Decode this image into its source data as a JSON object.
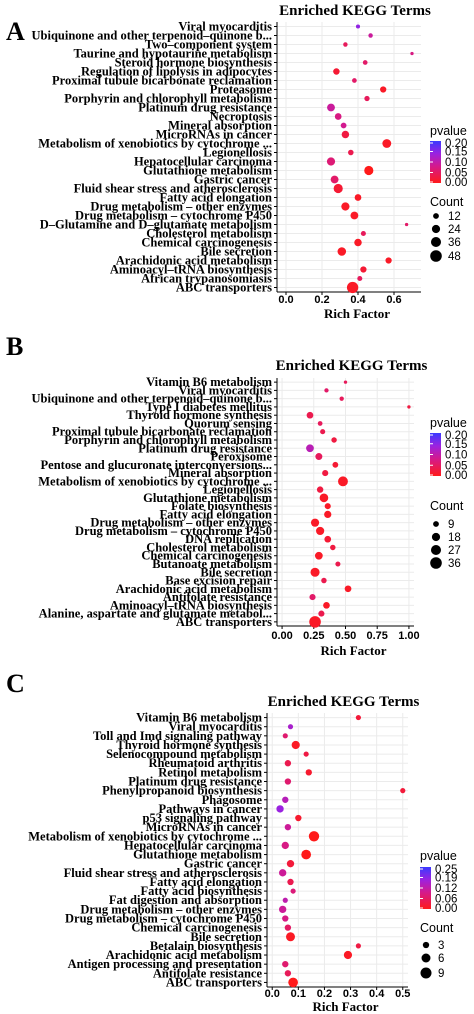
{
  "chart_data": [
    {
      "type": "scatter",
      "panel_label": "A",
      "title": "Enriched KEGG Terms",
      "xlabel": "Rich Factor",
      "xlim": [
        -0.05,
        0.75
      ],
      "xticks": [
        0.0,
        0.2,
        0.4,
        0.6
      ],
      "xtick_labels": [
        "0.0",
        "0.2",
        "0.4",
        "0.6"
      ],
      "grid": true,
      "legend_position": "right",
      "pvalue_legend": {
        "title": "pvalue",
        "ticks": [
          "0.20",
          "0.15",
          "0.10",
          "0.05",
          "0.00"
        ],
        "max": 0.22
      },
      "count_legend": {
        "title": "Count",
        "values": [
          12,
          24,
          36,
          48
        ]
      },
      "terms": [
        {
          "label": "Viral myocarditis",
          "rich_factor": 0.4,
          "count": 6,
          "pvalue": 0.16
        },
        {
          "label": "Ubiquinone and other terpenoid–quinone b...",
          "rich_factor": 0.47,
          "count": 7,
          "pvalue": 0.1
        },
        {
          "label": "Two–component system",
          "rich_factor": 0.33,
          "count": 7,
          "pvalue": 0.05
        },
        {
          "label": "Taurine and hypotaurine metabolism",
          "rich_factor": 0.7,
          "count": 4,
          "pvalue": 0.08
        },
        {
          "label": "Steroid hormone biosynthesis",
          "rich_factor": 0.44,
          "count": 8,
          "pvalue": 0.06
        },
        {
          "label": "Regulation of lipolysis in adipocytes",
          "rich_factor": 0.28,
          "count": 15,
          "pvalue": 0.02
        },
        {
          "label": "Proximal tubule bicarbonate reclamation",
          "rich_factor": 0.38,
          "count": 8,
          "pvalue": 0.06
        },
        {
          "label": "Proteasome",
          "rich_factor": 0.54,
          "count": 14,
          "pvalue": 0.01
        },
        {
          "label": "Porphyrin and chlorophyll metabolism",
          "rich_factor": 0.45,
          "count": 10,
          "pvalue": 0.05
        },
        {
          "label": "Platinum drug resistance",
          "rich_factor": 0.25,
          "count": 22,
          "pvalue": 0.1
        },
        {
          "label": "Necroptosis",
          "rich_factor": 0.29,
          "count": 16,
          "pvalue": 0.08
        },
        {
          "label": "Mineral absorption",
          "rich_factor": 0.32,
          "count": 12,
          "pvalue": 0.09
        },
        {
          "label": "MicroRNAs in cancer",
          "rich_factor": 0.33,
          "count": 20,
          "pvalue": 0.03
        },
        {
          "label": "Metabolism of xenobiotics by cytochrome ...",
          "rich_factor": 0.56,
          "count": 28,
          "pvalue": 0.01
        },
        {
          "label": "Legionellosis",
          "rich_factor": 0.36,
          "count": 11,
          "pvalue": 0.04
        },
        {
          "label": "Hepatocellular carcinoma",
          "rich_factor": 0.25,
          "count": 24,
          "pvalue": 0.07
        },
        {
          "label": "Glutathione metabolism",
          "rich_factor": 0.46,
          "count": 30,
          "pvalue": 0.0
        },
        {
          "label": "Gastric cancer",
          "rich_factor": 0.27,
          "count": 22,
          "pvalue": 0.06
        },
        {
          "label": "Fluid shear stress and atherosclerosis",
          "rich_factor": 0.29,
          "count": 30,
          "pvalue": 0.02
        },
        {
          "label": "Fatty acid elongation",
          "rich_factor": 0.4,
          "count": 16,
          "pvalue": 0.01
        },
        {
          "label": "Drug metabolism – other enzymes",
          "rich_factor": 0.33,
          "count": 24,
          "pvalue": 0.01
        },
        {
          "label": "Drug metabolism – cytochrome P450",
          "rich_factor": 0.38,
          "count": 22,
          "pvalue": 0.01
        },
        {
          "label": "D–Glutamine and D–glutamate metabolism",
          "rich_factor": 0.67,
          "count": 4,
          "pvalue": 0.06
        },
        {
          "label": "Cholesterol metabolism",
          "rich_factor": 0.43,
          "count": 9,
          "pvalue": 0.05
        },
        {
          "label": "Chemical carcinogenesis",
          "rich_factor": 0.4,
          "count": 20,
          "pvalue": 0.01
        },
        {
          "label": "Bile secretion",
          "rich_factor": 0.31,
          "count": 26,
          "pvalue": 0.01
        },
        {
          "label": "Arachidonic acid metabolism",
          "rich_factor": 0.57,
          "count": 14,
          "pvalue": 0.01
        },
        {
          "label": "Aminoacyl–tRNA biosynthesis",
          "rich_factor": 0.43,
          "count": 14,
          "pvalue": 0.02
        },
        {
          "label": "African trypanosomiasis",
          "rich_factor": 0.41,
          "count": 9,
          "pvalue": 0.05
        },
        {
          "label": "ABC transporters",
          "rich_factor": 0.37,
          "count": 46,
          "pvalue": 0.01
        }
      ]
    },
    {
      "type": "scatter",
      "panel_label": "B",
      "title": "Enriched KEGG Terms",
      "xlabel": "Rich Factor",
      "xlim": [
        -0.04,
        1.04
      ],
      "xticks": [
        0.0,
        0.25,
        0.5,
        0.75,
        1.0
      ],
      "xtick_labels": [
        "0.00",
        "0.25",
        "0.50",
        "0.75",
        "1.00"
      ],
      "grid": true,
      "legend_position": "right",
      "pvalue_legend": {
        "title": "pvalue",
        "ticks": [
          "0.20",
          "0.15",
          "0.10",
          "0.05",
          "0.00"
        ],
        "max": 0.22
      },
      "count_legend": {
        "title": "Count",
        "values": [
          9,
          18,
          27,
          36
        ]
      },
      "terms": [
        {
          "label": "Vitamin B6 metabolism",
          "rich_factor": 0.5,
          "count": 3,
          "pvalue": 0.05
        },
        {
          "label": "Viral myocarditis",
          "rich_factor": 0.35,
          "count": 5,
          "pvalue": 0.06
        },
        {
          "label": "Ubiquinone and other terpenoid–quinone b...",
          "rich_factor": 0.47,
          "count": 5,
          "pvalue": 0.05
        },
        {
          "label": "Type I diabetes mellitus",
          "rich_factor": 1.0,
          "count": 3,
          "pvalue": 0.03
        },
        {
          "label": "Thyroid hormone synthesis",
          "rich_factor": 0.22,
          "count": 12,
          "pvalue": 0.04
        },
        {
          "label": "Quorum sensing",
          "rich_factor": 0.3,
          "count": 6,
          "pvalue": 0.05
        },
        {
          "label": "Proximal tubule bicarbonate reclamation",
          "rich_factor": 0.32,
          "count": 7,
          "pvalue": 0.04
        },
        {
          "label": "Porphyrin and chlorophyll metabolism",
          "rich_factor": 0.41,
          "count": 8,
          "pvalue": 0.03
        },
        {
          "label": "Platinum drug resistance",
          "rich_factor": 0.22,
          "count": 16,
          "pvalue": 0.12
        },
        {
          "label": "Peroxisome",
          "rich_factor": 0.29,
          "count": 13,
          "pvalue": 0.05
        },
        {
          "label": "Pentose and glucuronate interconversions...",
          "rich_factor": 0.42,
          "count": 9,
          "pvalue": 0.02
        },
        {
          "label": "Mineral absorption",
          "rich_factor": 0.34,
          "count": 10,
          "pvalue": 0.03
        },
        {
          "label": "Metabolism of xenobiotics by cytochrome ...",
          "rich_factor": 0.48,
          "count": 26,
          "pvalue": 0.01
        },
        {
          "label": "Legionellosis",
          "rich_factor": 0.3,
          "count": 11,
          "pvalue": 0.03
        },
        {
          "label": "Glutathione metabolism",
          "rich_factor": 0.33,
          "count": 20,
          "pvalue": 0.01
        },
        {
          "label": "Folate biosynthesis",
          "rich_factor": 0.36,
          "count": 10,
          "pvalue": 0.01
        },
        {
          "label": "Fatty acid elongation",
          "rich_factor": 0.36,
          "count": 14,
          "pvalue": 0.01
        },
        {
          "label": "Drug metabolism – other enzymes",
          "rich_factor": 0.26,
          "count": 18,
          "pvalue": 0.01
        },
        {
          "label": "Drug metabolism – cytochrome P450",
          "rich_factor": 0.3,
          "count": 18,
          "pvalue": 0.01
        },
        {
          "label": "DNA replication",
          "rich_factor": 0.36,
          "count": 12,
          "pvalue": 0.02
        },
        {
          "label": "Cholesterol metabolism",
          "rich_factor": 0.4,
          "count": 8,
          "pvalue": 0.03
        },
        {
          "label": "Chemical carcinogenesis",
          "rich_factor": 0.29,
          "count": 16,
          "pvalue": 0.01
        },
        {
          "label": "Butanoate metabolism",
          "rich_factor": 0.44,
          "count": 7,
          "pvalue": 0.04
        },
        {
          "label": "Bile secretion",
          "rich_factor": 0.26,
          "count": 22,
          "pvalue": 0.01
        },
        {
          "label": "Base excision repair",
          "rich_factor": 0.33,
          "count": 8,
          "pvalue": 0.04
        },
        {
          "label": "Arachidonic acid metabolism",
          "rich_factor": 0.52,
          "count": 12,
          "pvalue": 0.01
        },
        {
          "label": "Antifolate resistance",
          "rich_factor": 0.24,
          "count": 10,
          "pvalue": 0.06
        },
        {
          "label": "Aminoacyl–tRNA biosynthesis",
          "rich_factor": 0.35,
          "count": 12,
          "pvalue": 0.01
        },
        {
          "label": "Alanine, aspartate and glutamate metabol...",
          "rich_factor": 0.31,
          "count": 10,
          "pvalue": 0.04
        },
        {
          "label": "ABC transporters",
          "rich_factor": 0.26,
          "count": 36,
          "pvalue": 0.01
        }
      ]
    },
    {
      "type": "scatter",
      "panel_label": "C",
      "title": "Enriched KEGG Terms",
      "xlabel": "Rich Factor",
      "xlim": [
        -0.02,
        0.52
      ],
      "xticks": [
        0.0,
        0.1,
        0.2,
        0.3,
        0.4,
        0.5
      ],
      "xtick_labels": [
        "0.0",
        "0.1",
        "0.2",
        "0.3",
        "0.4",
        "0.5"
      ],
      "grid": true,
      "legend_position": "right",
      "pvalue_legend": {
        "title": "pvalue",
        "ticks": [
          "0.25",
          "0.19",
          "0.12",
          "0.06",
          "0.00"
        ],
        "max": 0.27
      },
      "count_legend": {
        "title": "Count",
        "values": [
          3,
          6,
          9
        ]
      },
      "terms": [
        {
          "label": "Vitamin B6 metabolism",
          "rich_factor": 0.33,
          "count": 2,
          "pvalue": 0.03
        },
        {
          "label": "Viral myocarditis",
          "rich_factor": 0.07,
          "count": 2,
          "pvalue": 0.17
        },
        {
          "label": "Toll and Imd signaling pathway",
          "rich_factor": 0.05,
          "count": 2,
          "pvalue": 0.08
        },
        {
          "label": "Thyroid hormone synthesis",
          "rich_factor": 0.09,
          "count": 5,
          "pvalue": 0.01
        },
        {
          "label": "Selenocompound metabolism",
          "rich_factor": 0.13,
          "count": 2,
          "pvalue": 0.04
        },
        {
          "label": "Rheumatoid arthritis",
          "rich_factor": 0.06,
          "count": 3,
          "pvalue": 0.05
        },
        {
          "label": "Retinol metabolism",
          "rich_factor": 0.14,
          "count": 3,
          "pvalue": 0.02
        },
        {
          "label": "Platinum drug resistance",
          "rich_factor": 0.06,
          "count": 3,
          "pvalue": 0.08
        },
        {
          "label": "Phenylpropanoid biosynthesis",
          "rich_factor": 0.5,
          "count": 2,
          "pvalue": 0.03
        },
        {
          "label": "Phagosome",
          "rich_factor": 0.05,
          "count": 3,
          "pvalue": 0.15
        },
        {
          "label": "Pathways in cancer",
          "rich_factor": 0.03,
          "count": 4,
          "pvalue": 0.19
        },
        {
          "label": "p53 signaling pathway",
          "rich_factor": 0.1,
          "count": 3,
          "pvalue": 0.02
        },
        {
          "label": "MicroRNAs in cancer",
          "rich_factor": 0.06,
          "count": 3,
          "pvalue": 0.12
        },
        {
          "label": "Metabolism of xenobiotics by cytochrome ...",
          "rich_factor": 0.16,
          "count": 8,
          "pvalue": 0.0
        },
        {
          "label": "Hepatocellular carcinoma",
          "rich_factor": 0.05,
          "count": 4,
          "pvalue": 0.1
        },
        {
          "label": "Glutathione metabolism",
          "rich_factor": 0.13,
          "count": 7,
          "pvalue": 0.0
        },
        {
          "label": "Gastric cancer",
          "rich_factor": 0.07,
          "count": 4,
          "pvalue": 0.03
        },
        {
          "label": "Fluid shear stress and atherosclerosis",
          "rich_factor": 0.04,
          "count": 4,
          "pvalue": 0.12
        },
        {
          "label": "Fatty acid elongation",
          "rich_factor": 0.07,
          "count": 3,
          "pvalue": 0.05
        },
        {
          "label": "Fatty acid biosynthesis",
          "rich_factor": 0.08,
          "count": 2,
          "pvalue": 0.09
        },
        {
          "label": "Fat digestion and absorption",
          "rich_factor": 0.05,
          "count": 2,
          "pvalue": 0.14
        },
        {
          "label": "Drug metabolism – other enzymes",
          "rich_factor": 0.04,
          "count": 4,
          "pvalue": 0.12
        },
        {
          "label": "Drug metabolism – cytochrome P450",
          "rich_factor": 0.05,
          "count": 3,
          "pvalue": 0.1
        },
        {
          "label": "Chemical carcinogenesis",
          "rich_factor": 0.06,
          "count": 3,
          "pvalue": 0.07
        },
        {
          "label": "Bile secretion",
          "rich_factor": 0.07,
          "count": 6,
          "pvalue": 0.01
        },
        {
          "label": "Betalain biosynthesis",
          "rich_factor": 0.33,
          "count": 2,
          "pvalue": 0.04
        },
        {
          "label": "Arachidonic acid metabolism",
          "rich_factor": 0.29,
          "count": 5,
          "pvalue": 0.01
        },
        {
          "label": "Antigen processing and presentation",
          "rich_factor": 0.05,
          "count": 3,
          "pvalue": 0.08
        },
        {
          "label": "Antifolate resistance",
          "rich_factor": 0.06,
          "count": 3,
          "pvalue": 0.06
        },
        {
          "label": "ABC transporters",
          "rich_factor": 0.08,
          "count": 7,
          "pvalue": 0.0
        }
      ]
    }
  ]
}
